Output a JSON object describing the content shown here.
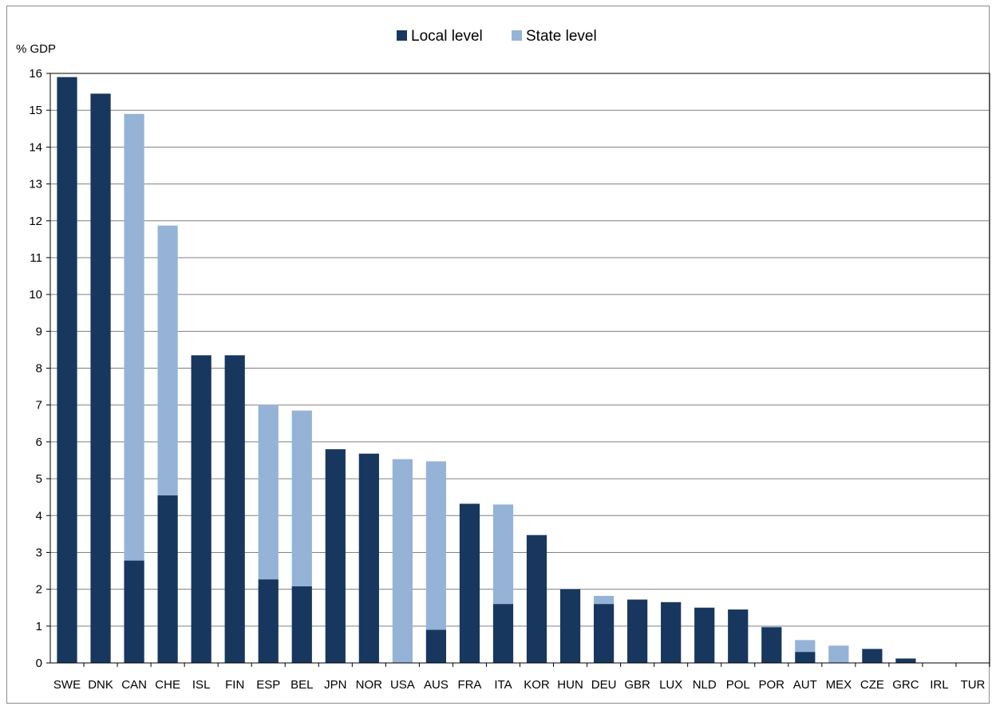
{
  "chart_data": {
    "type": "bar",
    "stacked": true,
    "ylabel": "% GDP",
    "ylim": [
      0,
      16
    ],
    "yticks": [
      0,
      1,
      2,
      3,
      4,
      5,
      6,
      7,
      8,
      9,
      10,
      11,
      12,
      13,
      14,
      15,
      16
    ],
    "grid": true,
    "legend_position": "top-center",
    "categories": [
      "SWE",
      "DNK",
      "CAN",
      "CHE",
      "ISL",
      "FIN",
      "ESP",
      "BEL",
      "JPN",
      "NOR",
      "USA",
      "AUS",
      "FRA",
      "ITA",
      "KOR",
      "HUN",
      "DEU",
      "GBR",
      "LUX",
      "NLD",
      "POL",
      "POR",
      "AUT",
      "MEX",
      "CZE",
      "GRC",
      "IRL",
      "TUR"
    ],
    "series": [
      {
        "name": "Local level",
        "color": "#17375e",
        "values": [
          15.9,
          15.45,
          2.78,
          4.55,
          8.35,
          8.35,
          2.27,
          2.08,
          5.8,
          5.68,
          0,
          0.9,
          4.32,
          1.6,
          3.47,
          2.0,
          1.6,
          1.72,
          1.65,
          1.5,
          1.45,
          0.97,
          0.3,
          0,
          0.38,
          0.12,
          0,
          0
        ]
      },
      {
        "name": "State level",
        "color": "#95b3d7",
        "values": [
          0,
          0,
          12.12,
          7.32,
          0,
          0,
          4.73,
          4.77,
          0,
          0,
          5.53,
          4.57,
          0,
          2.7,
          0,
          0,
          0.22,
          0,
          0,
          0,
          0,
          0.03,
          0.32,
          0.47,
          0,
          0,
          0,
          0
        ]
      }
    ]
  }
}
